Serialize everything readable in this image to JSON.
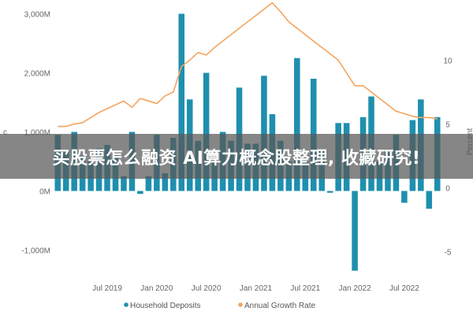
{
  "chart_data": {
    "type": "bar",
    "x": [
      "Jan 2019",
      "Feb 2019",
      "Mar 2019",
      "Apr 2019",
      "May 2019",
      "Jun 2019",
      "Jul 2019",
      "Aug 2019",
      "Sep 2019",
      "Oct 2019",
      "Nov 2019",
      "Dec 2019",
      "Jan 2020",
      "Feb 2020",
      "Mar 2020",
      "Apr 2020",
      "May 2020",
      "Jun 2020",
      "Jul 2020",
      "Aug 2020",
      "Sep 2020",
      "Oct 2020",
      "Nov 2020",
      "Dec 2020",
      "Jan 2021",
      "Feb 2021",
      "Mar 2021",
      "Apr 2021",
      "May 2021",
      "Jun 2021",
      "Jul 2021",
      "Aug 2021",
      "Sep 2021",
      "Oct 2021",
      "Nov 2021",
      "Dec 2021",
      "Jan 2022",
      "Feb 2022",
      "Mar 2022",
      "Apr 2022",
      "May 2022",
      "Jun 2022",
      "Jul 2022",
      "Aug 2022",
      "Sep 2022",
      "Oct 2022",
      "Nov 2022"
    ],
    "x_ticks": [
      "Jul 2019",
      "Jan 2020",
      "Jul 2020",
      "Jan 2021",
      "Jul 2021",
      "Jan 2022",
      "Jul 2022"
    ],
    "series": [
      {
        "name": "Household Deposits",
        "axis": "left",
        "color": "#1f8fae",
        "values": [
          950,
          700,
          1000,
          600,
          500,
          720,
          780,
          600,
          250,
          1000,
          -50,
          250,
          950,
          300,
          900,
          3000,
          1550,
          850,
          2000,
          500,
          1000,
          850,
          1750,
          800,
          800,
          1950,
          1300,
          850,
          500,
          2250,
          500,
          1900,
          700,
          -30,
          1150,
          1150,
          -1350,
          1250,
          1600,
          500,
          700,
          950,
          -200,
          1200,
          1550,
          -300,
          1250
        ]
      },
      {
        "name": "Annual Growth Rate",
        "axis": "right",
        "color": "#f4a460",
        "type": "line",
        "values": [
          4.8,
          4.8,
          5.0,
          5.1,
          5.5,
          5.9,
          6.2,
          6.5,
          6.8,
          6.3,
          7.0,
          6.8,
          6.6,
          7.2,
          7.5,
          9.5,
          10.0,
          10.6,
          10.4,
          11.0,
          11.5,
          12.0,
          12.5,
          13.0,
          13.5,
          14.0,
          14.5,
          13.8,
          13.0,
          12.5,
          12.0,
          11.5,
          11.0,
          10.5,
          10.0,
          9.0,
          8.0,
          8.0,
          7.5,
          7.0,
          6.5,
          6.0,
          5.8,
          5.6,
          5.5,
          5.5,
          5.4
        ]
      }
    ],
    "y_left": {
      "ticks": [
        "3,000M",
        "2,000M",
        "1,000M",
        "0M",
        "-1,000M"
      ],
      "ylim": [
        -1500,
        3100
      ]
    },
    "y_right": {
      "label": "Percent",
      "ticks": [
        "10",
        "5",
        "0",
        "-5"
      ],
      "ylim": [
        -7.2,
        14.1
      ]
    },
    "legend": {
      "position": "bottom",
      "items": [
        "Household Deposits",
        "Annual Growth Rate"
      ]
    },
    "grid": false
  },
  "banner": {
    "text": "买股票怎么融资 AI算力概念股整理, 收藏研究!"
  },
  "axis_letter": "c"
}
